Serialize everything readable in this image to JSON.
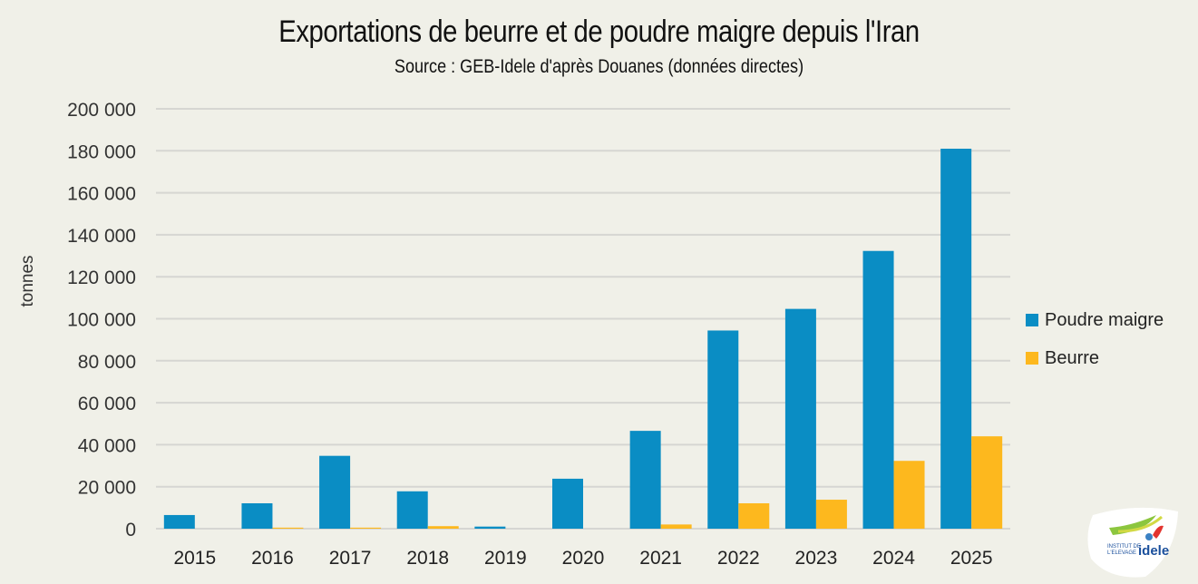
{
  "chart_data": {
    "type": "bar",
    "title": "Exportations de beurre et de poudre maigre depuis l'Iran",
    "subtitle": "Source : GEB-Idele d'après Douanes (données directes)",
    "xlabel": "",
    "ylabel": "tonnes",
    "ylim": [
      0,
      200000
    ],
    "yticks": [
      0,
      20000,
      40000,
      60000,
      80000,
      100000,
      120000,
      140000,
      160000,
      180000,
      200000
    ],
    "ytick_labels": [
      "0",
      "20 000",
      "40 000",
      "60 000",
      "80 000",
      "100 000",
      "120 000",
      "140 000",
      "160 000",
      "180 000",
      "200 000"
    ],
    "grid": true,
    "legend_position": "right",
    "categories": [
      "2015",
      "2016",
      "2017",
      "2018",
      "2019",
      "2020",
      "2021",
      "2022",
      "2023",
      "2024",
      "2025"
    ],
    "series": [
      {
        "name": "Poudre maigre",
        "color": "#0a8dc4",
        "values": [
          6500,
          12100,
          34700,
          17800,
          1000,
          23800,
          46600,
          94400,
          104700,
          132300,
          181000
        ]
      },
      {
        "name": "Beurre",
        "color": "#fdb81e",
        "values": [
          0,
          500,
          500,
          1200,
          0,
          0,
          2000,
          12100,
          13800,
          32300,
          44000
        ]
      }
    ]
  },
  "logo": {
    "line1": "INSTITUT DE",
    "line2": "L'ELEVAGE",
    "brand": "idele"
  }
}
